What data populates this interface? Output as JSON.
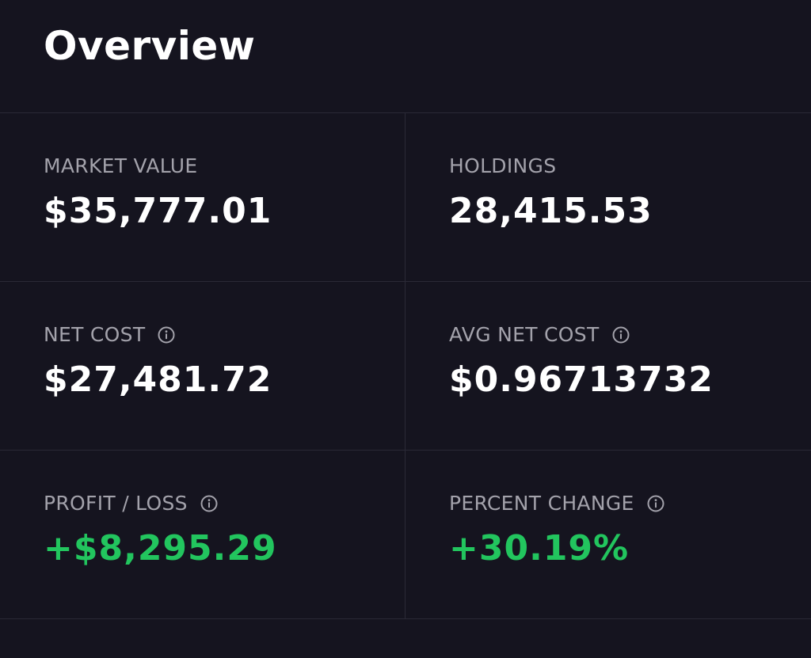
{
  "header": {
    "title": "Overview"
  },
  "stats": [
    {
      "label": "MARKET VALUE",
      "value": "$35,777.01",
      "has_info": false,
      "positive": false
    },
    {
      "label": "HOLDINGS",
      "value": "28,415.53",
      "has_info": false,
      "positive": false
    },
    {
      "label": "NET COST",
      "value": "$27,481.72",
      "has_info": true,
      "positive": false
    },
    {
      "label": "AVG NET COST",
      "value": "$0.96713732",
      "has_info": true,
      "positive": false
    },
    {
      "label": "PROFIT / LOSS",
      "value": "+$8,295.29",
      "has_info": true,
      "positive": true
    },
    {
      "label": "PERCENT CHANGE",
      "value": "+30.19%",
      "has_info": true,
      "positive": true
    }
  ],
  "icons": {
    "info": "info-icon"
  },
  "colors": {
    "background": "#15141f",
    "divider": "#2a2936",
    "label": "#a3a2ab",
    "value": "#ffffff",
    "positive": "#22c55e"
  }
}
